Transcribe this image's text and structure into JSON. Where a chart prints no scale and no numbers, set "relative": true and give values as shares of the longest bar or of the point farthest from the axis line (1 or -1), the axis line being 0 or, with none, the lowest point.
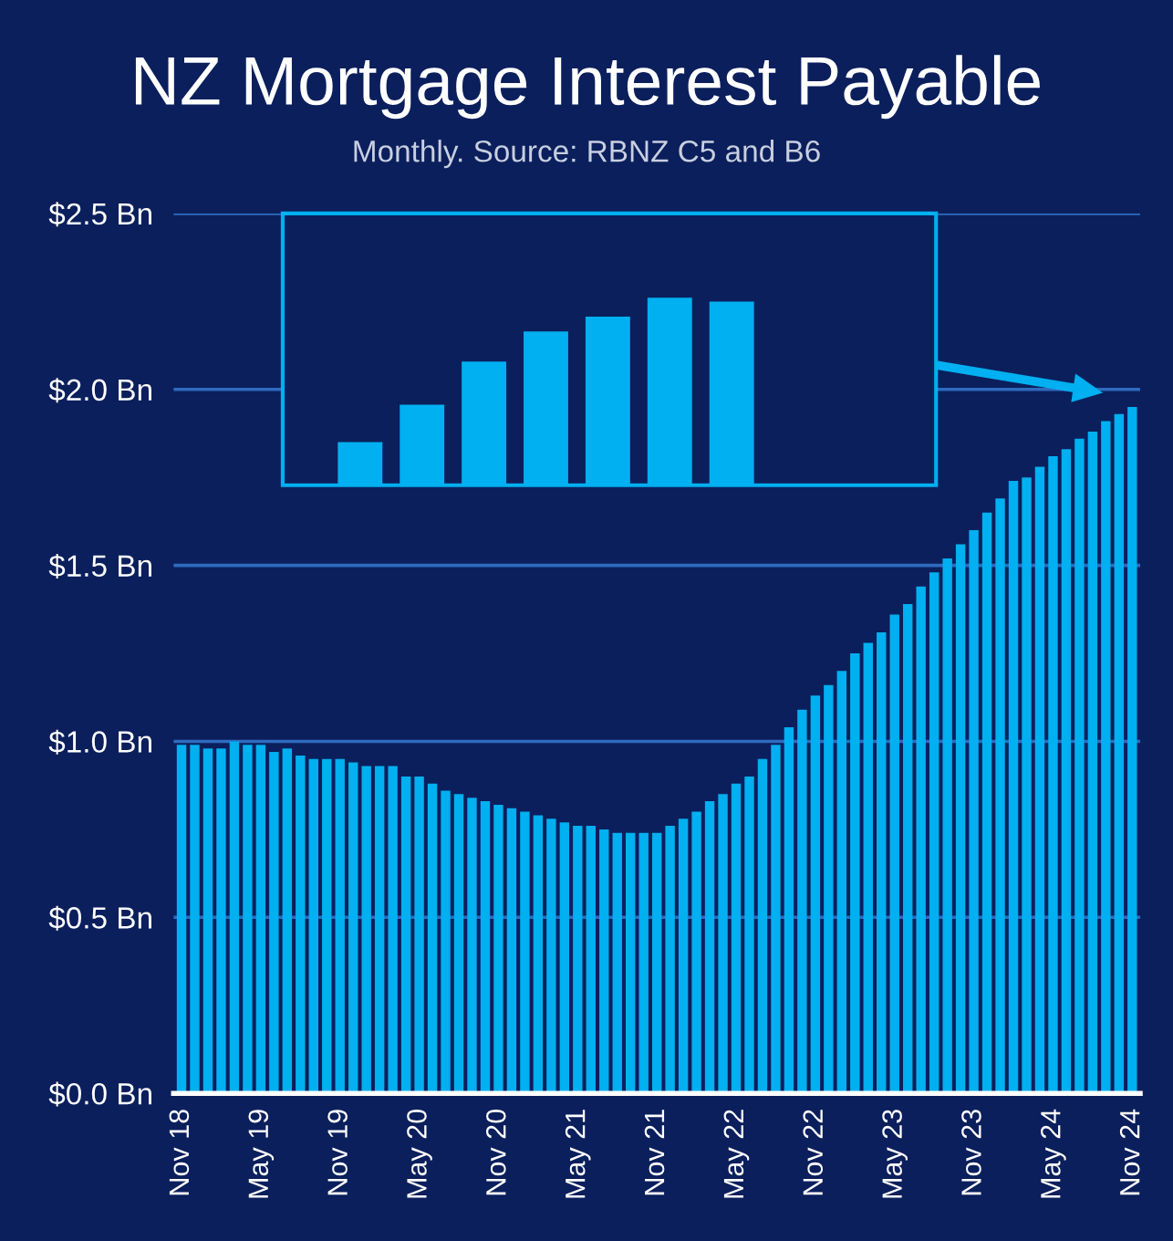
{
  "chart_data": [
    {
      "type": "bar",
      "title": "NZ Mortgage Interest Payable",
      "subtitle": "Monthly. Source: RBNZ C5 and B6",
      "categories": [
        "Nov 18",
        null,
        null,
        null,
        null,
        null,
        "May 19",
        null,
        null,
        null,
        null,
        null,
        "Nov 19",
        null,
        null,
        null,
        null,
        null,
        "May 20",
        null,
        null,
        null,
        null,
        null,
        "Nov 20",
        null,
        null,
        null,
        null,
        null,
        "May 21",
        null,
        null,
        null,
        null,
        null,
        "Nov 21",
        null,
        null,
        null,
        null,
        null,
        "May 22",
        null,
        null,
        null,
        null,
        null,
        "Nov 22",
        null,
        null,
        null,
        null,
        null,
        "May 23",
        null,
        null,
        null,
        null,
        null,
        "Nov 23",
        null,
        null,
        null,
        null,
        null,
        "May 24",
        null,
        null,
        null,
        null,
        null,
        "Nov 24"
      ],
      "values": [
        0.99,
        0.99,
        0.98,
        0.98,
        1.0,
        0.99,
        0.99,
        0.97,
        0.98,
        0.96,
        0.95,
        0.95,
        0.95,
        0.94,
        0.93,
        0.93,
        0.93,
        0.9,
        0.9,
        0.88,
        0.86,
        0.85,
        0.84,
        0.83,
        0.82,
        0.81,
        0.8,
        0.79,
        0.78,
        0.77,
        0.76,
        0.76,
        0.75,
        0.74,
        0.74,
        0.74,
        0.74,
        0.76,
        0.78,
        0.8,
        0.83,
        0.85,
        0.88,
        0.9,
        0.95,
        0.99,
        1.04,
        1.09,
        1.13,
        1.16,
        1.2,
        1.25,
        1.28,
        1.31,
        1.36,
        1.39,
        1.44,
        1.48,
        1.52,
        1.56,
        1.6,
        1.65,
        1.69,
        1.74,
        1.75,
        1.78,
        1.81,
        1.83,
        1.86,
        1.88,
        1.91,
        1.93,
        1.95
      ],
      "color": "#00b0f0",
      "ylim": [
        0,
        2.5
      ],
      "yticks": [
        {
          "value": 0,
          "label": "$0.0 Bn"
        },
        {
          "value": 0.5,
          "label": "$0.5 Bn"
        },
        {
          "value": 1.0,
          "label": "$1.0 Bn"
        },
        {
          "value": 1.5,
          "label": "$1.5 Bn"
        },
        {
          "value": 2.0,
          "label": "$2.0 Bn"
        },
        {
          "value": 2.5,
          "label": "$2.5 Bn"
        }
      ],
      "grid": "y"
    },
    {
      "type": "bar",
      "relative": true,
      "categories": [
        null,
        null,
        null,
        null,
        null,
        null,
        null
      ],
      "values": [
        0.23,
        0.43,
        0.66,
        0.82,
        0.9,
        1.0,
        0.98
      ],
      "color": "#00b0f0"
    }
  ]
}
